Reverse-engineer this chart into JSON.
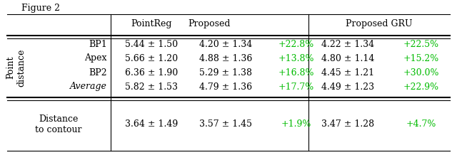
{
  "title": "Figure 2",
  "col_headers": [
    "PointReg",
    "Proposed",
    "Proposed GRU"
  ],
  "row_group_label": "Point\ndistance",
  "rows": [
    {
      "label": "BP1",
      "label_italic": false,
      "pointreg": "5.44 ± 1.50",
      "proposed": "4.20 ± 1.34",
      "proposed_pct": "+22.8%",
      "gru": "4.22 ± 1.34",
      "gru_pct": "+22.5%"
    },
    {
      "label": "Apex",
      "label_italic": false,
      "pointreg": "5.66 ± 1.20",
      "proposed": "4.88 ± 1.36",
      "proposed_pct": "+13.8%",
      "gru": "4.80 ± 1.14",
      "gru_pct": "+15.2%"
    },
    {
      "label": "BP2",
      "label_italic": false,
      "pointreg": "6.36 ± 1.90",
      "proposed": "5.29 ± 1.38",
      "proposed_pct": "+16.8%",
      "gru": "4.45 ± 1.21",
      "gru_pct": "+30.0%"
    },
    {
      "label": "Average",
      "label_italic": true,
      "pointreg": "5.82 ± 1.53",
      "proposed": "4.79 ± 1.36",
      "proposed_pct": "+17.7%",
      "gru": "4.49 ± 1.23",
      "gru_pct": "+22.9%"
    }
  ],
  "bottom_row": {
    "label": "Distance\nto contour",
    "pointreg": "3.64 ± 1.49",
    "proposed": "3.57 ± 1.45",
    "proposed_pct": "+1.9%",
    "gru": "3.47 ± 1.28",
    "gru_pct": "+4.7%"
  },
  "green_color": "#00bb00",
  "text_color": "#000000",
  "bg_color": "#ffffff",
  "font_size": 9.0
}
